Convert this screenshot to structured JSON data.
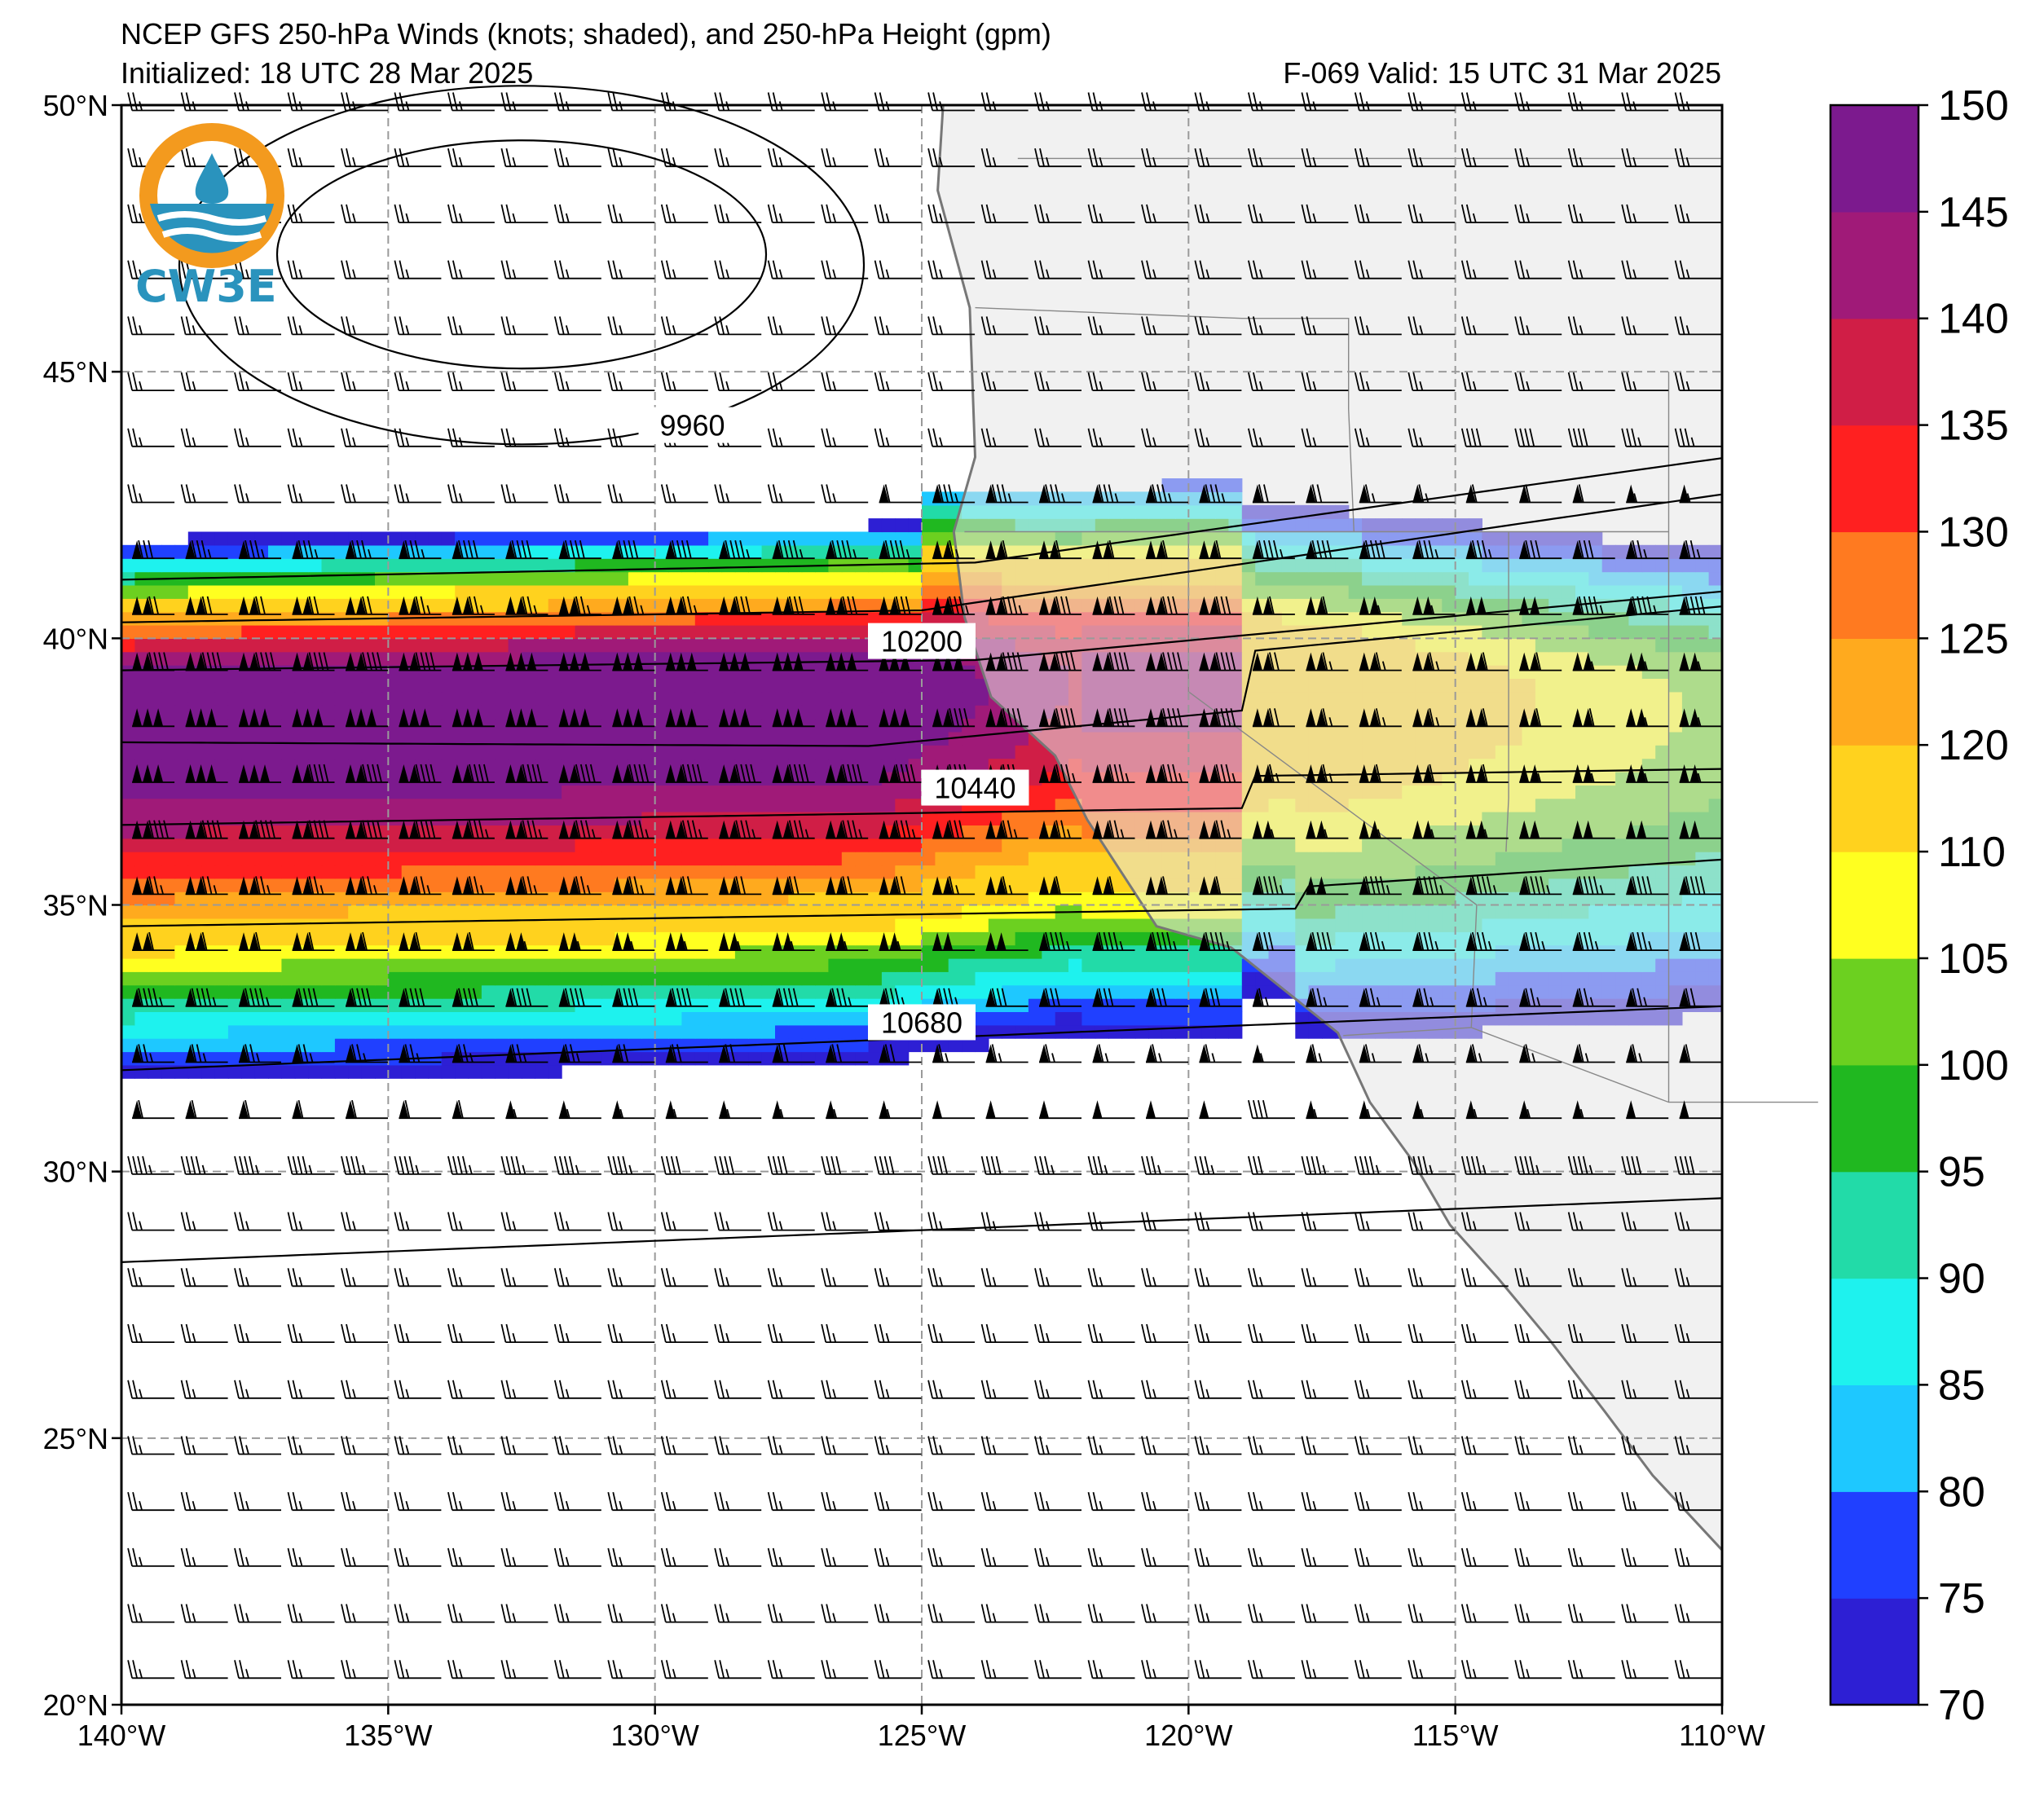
{
  "title": {
    "line1": "NCEP GFS 250-hPa Winds (knots; shaded), and 250-hPa Height (gpm)",
    "initialized": "Initialized: 18 UTC 28 Mar 2025",
    "valid": "F-069  Valid: 15 UTC 31 Mar 2025"
  },
  "logo": {
    "text": "CW3E"
  },
  "map": {
    "lon_range": [
      -140,
      -110
    ],
    "lat_range": [
      20,
      50
    ],
    "lat_ticks": [
      {
        "value": 50,
        "label": "50°N"
      },
      {
        "value": 45,
        "label": "45°N"
      },
      {
        "value": 40,
        "label": "40°N"
      },
      {
        "value": 35,
        "label": "35°N"
      },
      {
        "value": 30,
        "label": "30°N"
      },
      {
        "value": 25,
        "label": "25°N"
      },
      {
        "value": 20,
        "label": "20°N"
      }
    ],
    "lon_ticks": [
      {
        "value": -140,
        "label": "140°W"
      },
      {
        "value": -135,
        "label": "135°W"
      },
      {
        "value": -130,
        "label": "130°W"
      },
      {
        "value": -125,
        "label": "125°W"
      },
      {
        "value": -120,
        "label": "120°W"
      },
      {
        "value": -115,
        "label": "115°W"
      },
      {
        "value": -110,
        "label": "110°W"
      }
    ],
    "contour_labels": [
      {
        "text": "9960",
        "lon": -129.3,
        "lat": 44.0
      },
      {
        "text": "10200",
        "lon": -125.0,
        "lat": 39.95
      },
      {
        "text": "10440",
        "lon": -124.0,
        "lat": 37.2
      },
      {
        "text": "10680",
        "lon": -125.0,
        "lat": 32.8
      }
    ],
    "colors": {
      "land": "#e6e6e6",
      "coast": "#777777",
      "contour": "#000000",
      "grid": "#9a9a9a"
    }
  },
  "colorbar": {
    "bounds": [
      70,
      75,
      80,
      85,
      90,
      95,
      100,
      105,
      110,
      120,
      125,
      130,
      135,
      140,
      145,
      150
    ],
    "labels": [
      "70",
      "75",
      "80",
      "85",
      "90",
      "95",
      "100",
      "105",
      "110",
      "120",
      "125",
      "130",
      "135",
      "140",
      "145",
      "150"
    ],
    "colors": [
      "#2d1fd4",
      "#2040ff",
      "#1ec8ff",
      "#1ef2ee",
      "#22dba8",
      "#20b820",
      "#6cd020",
      "#ffff20",
      "#ffd21e",
      "#ffaa1e",
      "#ff7a20",
      "#ff2020",
      "#d01e46",
      "#a01a78",
      "#7c1a8e"
    ]
  }
}
